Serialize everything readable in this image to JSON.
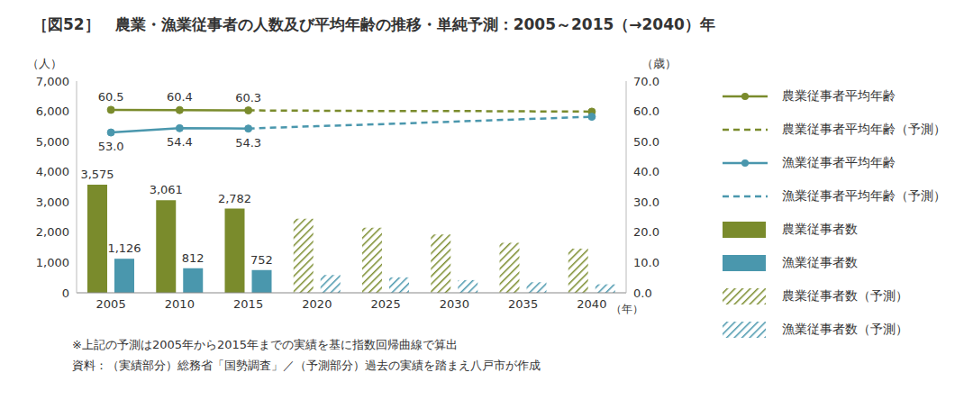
{
  "chart_data": {
    "type": "bar",
    "title": "［図52］　農業・漁業従事者の人数及び平均年齢の推移・単純予測：2005～2015（→2040）年",
    "xlabel": "（年）",
    "ylabel": "（人）",
    "y2label": "（歳）",
    "notes": [
      "※上記の予測は2005年から2015年までの実績を基に指数回帰曲線で算出",
      "資料：（実績部分）総務省「国勢調査」／（予測部分）過去の実績を踏まえ八戸市が作成"
    ],
    "categories": [
      "2005",
      "2010",
      "2015",
      "2020",
      "2025",
      "2030",
      "2035",
      "2040"
    ],
    "ylim": [
      0,
      7000
    ],
    "yticks": [
      0,
      {
        "value": 1000,
        "label": "1,000"
      },
      {
        "value": 2000,
        "label": "2,000"
      },
      {
        "value": 3000,
        "label": "3,000"
      },
      {
        "value": 4000,
        "label": "4,000"
      },
      {
        "value": 5000,
        "label": "5,000"
      },
      {
        "value": 6000,
        "label": "6,000"
      },
      {
        "value": 7000,
        "label": "7,000"
      }
    ],
    "y2lim": [
      0,
      70
    ],
    "y2ticks": [
      {
        "value": 0,
        "label": "0.0"
      },
      {
        "value": 10,
        "label": "10.0"
      },
      {
        "value": 20,
        "label": "20.0"
      },
      {
        "value": 30,
        "label": "30.0"
      },
      {
        "value": 40,
        "label": "40.0"
      },
      {
        "value": 50,
        "label": "50.0"
      },
      {
        "value": 60,
        "label": "60.0"
      },
      {
        "value": 70,
        "label": "70.0"
      }
    ],
    "legend": "right",
    "data_labels": true,
    "series": [
      {
        "name": "農業従事者平均年齢",
        "type": "line",
        "axis": "y2",
        "color": "#7a8b2c",
        "marker": "circle",
        "line_style": "solid",
        "values": [
          60.5,
          60.4,
          60.3,
          null,
          null,
          null,
          null,
          null
        ],
        "value_labels": [
          "60.5",
          "60.4",
          "60.3",
          null,
          null,
          null,
          null,
          null
        ]
      },
      {
        "name": "農業従事者平均年齢（予測）",
        "type": "line",
        "axis": "y2",
        "color": "#7a8b2c",
        "marker": "circle_end",
        "line_style": "dashed",
        "values": [
          null,
          null,
          60.3,
          60.2,
          60.1,
          60.1,
          60.0,
          59.9
        ]
      },
      {
        "name": "漁業従事者平均年齢",
        "type": "line",
        "axis": "y2",
        "color": "#4a97ad",
        "marker": "circle",
        "line_style": "solid",
        "values": [
          53.0,
          54.4,
          54.3,
          null,
          null,
          null,
          null,
          null
        ],
        "value_labels": [
          "53.0",
          "54.4",
          "54.3",
          null,
          null,
          null,
          null,
          null
        ]
      },
      {
        "name": "漁業従事者平均年齢（予測）",
        "type": "line",
        "axis": "y2",
        "color": "#4a97ad",
        "marker": "circle_end",
        "line_style": "dashed",
        "values": [
          null,
          null,
          54.3,
          55.1,
          55.8,
          56.6,
          57.4,
          58.2
        ]
      },
      {
        "name": "農業従事者数",
        "type": "bar",
        "color": "#7a8b2c",
        "line_style": "solid",
        "values": [
          3575,
          3061,
          2782,
          null,
          null,
          null,
          null,
          null
        ],
        "value_labels": [
          "3,575",
          "3,061",
          "2,782",
          null,
          null,
          null,
          null,
          null
        ]
      },
      {
        "name": "漁業従事者数",
        "type": "bar",
        "color": "#4a97ad",
        "line_style": "solid",
        "values": [
          1126,
          812,
          752,
          null,
          null,
          null,
          null,
          null
        ],
        "value_labels": [
          "1,126",
          "812",
          "752",
          null,
          null,
          null,
          null,
          null
        ]
      },
      {
        "name": "農業従事者数（予測）",
        "type": "bar",
        "color": "#7a8b2c",
        "line_style": "hatched",
        "values": [
          null,
          null,
          null,
          2450,
          2150,
          1930,
          1650,
          1460
        ]
      },
      {
        "name": "漁業従事者数（予測）",
        "type": "bar",
        "color": "#4a97ad",
        "line_style": "hatched",
        "values": [
          null,
          null,
          null,
          590,
          510,
          420,
          350,
          280
        ]
      }
    ]
  }
}
